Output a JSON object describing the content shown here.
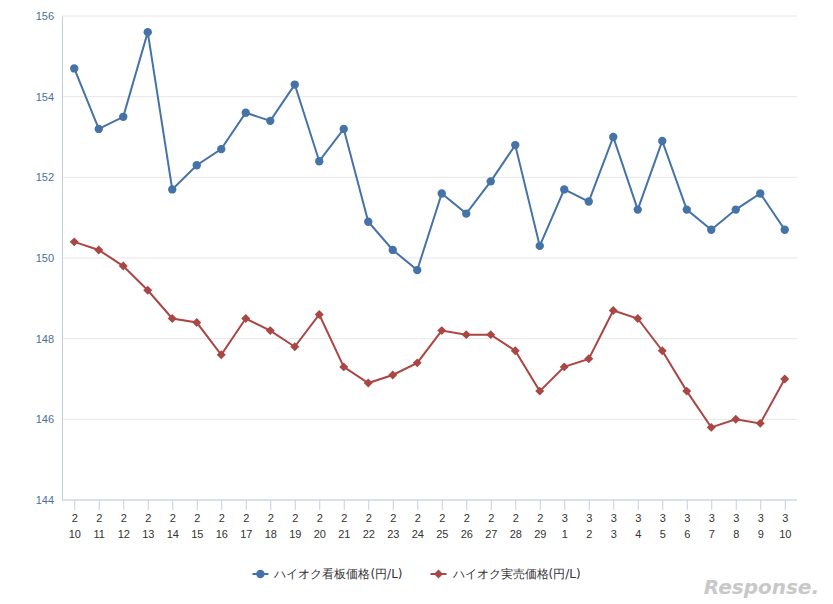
{
  "chart_data": {
    "type": "line",
    "categories": [
      "2\n10",
      "2\n11",
      "2\n12",
      "2\n13",
      "2\n14",
      "2\n15",
      "2\n16",
      "2\n17",
      "2\n18",
      "2\n19",
      "2\n20",
      "2\n21",
      "2\n22",
      "2\n23",
      "2\n24",
      "2\n25",
      "2\n26",
      "2\n27",
      "2\n28",
      "2\n29",
      "3\n1",
      "3\n2",
      "3\n3",
      "3\n4",
      "3\n5",
      "3\n6",
      "3\n7",
      "3\n8",
      "3\n9",
      "3\n10"
    ],
    "series": [
      {
        "name": "ハイオク看板価格(円/L)",
        "color": "#4572a7",
        "marker": "circle",
        "values": [
          154.7,
          153.2,
          153.5,
          155.6,
          151.7,
          152.3,
          152.7,
          153.6,
          153.4,
          154.3,
          152.4,
          153.2,
          150.9,
          150.2,
          149.7,
          151.6,
          151.1,
          151.9,
          152.8,
          150.3,
          151.7,
          151.4,
          153.0,
          151.2,
          152.9,
          151.2,
          150.7,
          151.2,
          151.6,
          150.7
        ]
      },
      {
        "name": "ハイオク実売価格(円/L)",
        "color": "#aa4643",
        "marker": "diamond",
        "values": [
          150.4,
          150.2,
          149.8,
          149.2,
          148.5,
          148.4,
          147.6,
          148.5,
          148.2,
          147.8,
          148.6,
          147.3,
          146.9,
          147.1,
          147.4,
          148.2,
          148.1,
          148.1,
          147.7,
          146.7,
          147.3,
          147.5,
          148.7,
          148.5,
          147.7,
          146.7,
          145.8,
          146.0,
          145.9,
          147.0
        ]
      }
    ],
    "ylim": [
      144,
      156
    ],
    "yticks": [
      144,
      146,
      148,
      150,
      152,
      154,
      156
    ],
    "grid": true,
    "legend": "bottom",
    "annotations": [
      "Response."
    ]
  }
}
